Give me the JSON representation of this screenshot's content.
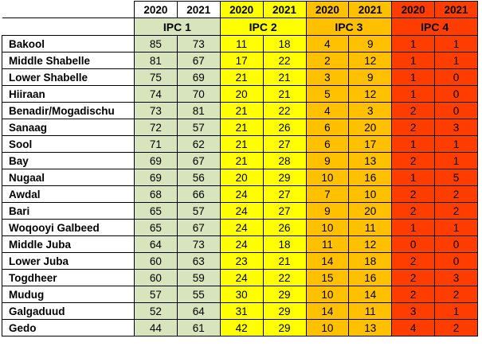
{
  "table": {
    "years": [
      2020,
      2021,
      2020,
      2021,
      2020,
      2021,
      2020,
      2021
    ],
    "groups": [
      {
        "label": "IPC 1",
        "color": "#d8e4bc"
      },
      {
        "label": "IPC 2",
        "color": "#ffff00"
      },
      {
        "label": "IPC 3",
        "color": "#ffc000"
      },
      {
        "label": "IPC 4",
        "color": "#ff3d00"
      }
    ],
    "rows": [
      {
        "region": "Bakool",
        "values": [
          85,
          73,
          11,
          18,
          4,
          9,
          1,
          1
        ]
      },
      {
        "region": "Middle Shabelle",
        "values": [
          81,
          67,
          17,
          22,
          2,
          12,
          1,
          1
        ]
      },
      {
        "region": "Lower Shabelle",
        "values": [
          75,
          69,
          21,
          21,
          3,
          9,
          1,
          0
        ]
      },
      {
        "region": "Hiiraan",
        "values": [
          74,
          70,
          20,
          21,
          5,
          12,
          1,
          0
        ]
      },
      {
        "region": "Benadir/Mogadischu",
        "values": [
          73,
          81,
          21,
          22,
          4,
          3,
          2,
          0
        ]
      },
      {
        "region": "Sanaag",
        "values": [
          72,
          57,
          21,
          26,
          6,
          20,
          2,
          3
        ]
      },
      {
        "region": "Sool",
        "values": [
          71,
          62,
          21,
          27,
          6,
          17,
          1,
          1
        ]
      },
      {
        "region": "Bay",
        "values": [
          69,
          67,
          21,
          28,
          9,
          13,
          2,
          1
        ]
      },
      {
        "region": "Nugaal",
        "values": [
          69,
          56,
          20,
          29,
          10,
          16,
          1,
          5
        ]
      },
      {
        "region": "Awdal",
        "values": [
          68,
          66,
          24,
          27,
          7,
          10,
          2,
          2
        ]
      },
      {
        "region": "Bari",
        "values": [
          65,
          57,
          24,
          27,
          9,
          20,
          2,
          2
        ]
      },
      {
        "region": "Woqooyi Galbeed",
        "values": [
          65,
          67,
          24,
          26,
          10,
          11,
          1,
          1
        ]
      },
      {
        "region": "Middle Juba",
        "values": [
          64,
          73,
          24,
          18,
          11,
          12,
          0,
          0
        ]
      },
      {
        "region": "Lower Juba",
        "values": [
          60,
          63,
          23,
          21,
          14,
          18,
          2,
          0
        ]
      },
      {
        "region": "Togdheer",
        "values": [
          60,
          59,
          24,
          22,
          15,
          16,
          2,
          3
        ]
      },
      {
        "region": "Mudug",
        "values": [
          57,
          55,
          30,
          29,
          10,
          14,
          2,
          2
        ]
      },
      {
        "region": "Galgaduud",
        "values": [
          52,
          64,
          31,
          29,
          14,
          11,
          3,
          1
        ]
      },
      {
        "region": "Gedo",
        "values": [
          44,
          61,
          42,
          29,
          10,
          13,
          4,
          2
        ]
      }
    ]
  }
}
